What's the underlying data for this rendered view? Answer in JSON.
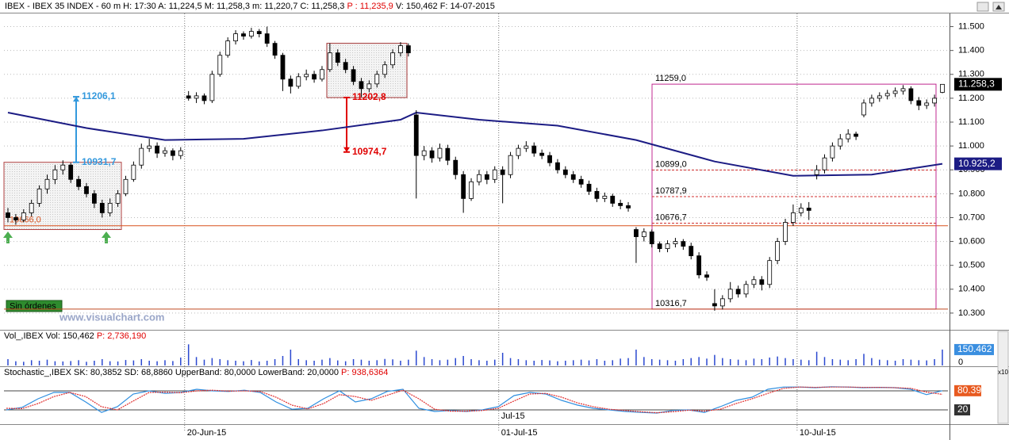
{
  "chart_data": {
    "type": "candlestick",
    "header": {
      "main": "IBEX - IBEX 35 INDEX -  60 m H: 17:30 A: 11,224,5 M: 11,258,3 m: 11,220,7 C: 11,258,3 ",
      "last": "P : 11,235,9",
      "tail": " V: 150,462 F: 14-07-2015"
    },
    "ylim": [
      10230,
      11555
    ],
    "yticks": [
      {
        "value": 11500,
        "label": "11.500"
      },
      {
        "value": 11400,
        "label": "11.400"
      },
      {
        "value": 11300,
        "label": "11.300"
      },
      {
        "value": 11200,
        "label": "11.200"
      },
      {
        "value": 11100,
        "label": "11.100"
      },
      {
        "value": 11000,
        "label": "11.000"
      },
      {
        "value": 10900,
        "label": "10.900"
      },
      {
        "value": 10800,
        "label": "10.800"
      },
      {
        "value": 10700,
        "label": "10.700"
      },
      {
        "value": 10600,
        "label": "10.600"
      },
      {
        "value": 10500,
        "label": "10.500"
      },
      {
        "value": 10400,
        "label": "10.400"
      },
      {
        "value": 10300,
        "label": "10.300"
      }
    ],
    "grid": true,
    "categories": [
      null,
      null,
      null,
      null,
      null,
      null,
      null,
      null,
      null,
      null,
      null,
      null,
      null,
      null,
      null,
      null,
      null,
      null,
      null,
      null,
      null,
      null,
      null,
      "20-Jun-15",
      null,
      null,
      null,
      null,
      null,
      null,
      null,
      null,
      null,
      null,
      null,
      null,
      null,
      null,
      null,
      null,
      null,
      null,
      null,
      null,
      null,
      null,
      null,
      null,
      null,
      null,
      null,
      null,
      null,
      null,
      null,
      null,
      null,
      null,
      null,
      null,
      null,
      null,
      null,
      "01-Jul-15",
      null,
      null,
      null,
      null,
      null,
      null,
      null,
      null,
      null,
      null,
      null,
      null,
      null,
      null,
      null,
      null,
      null,
      null,
      null,
      null,
      null,
      null,
      null,
      null,
      null,
      null,
      null,
      null,
      null,
      null,
      null,
      null,
      null,
      null,
      null,
      null,
      null,
      "10-Jul-15",
      null,
      null,
      null,
      null,
      null,
      null,
      null,
      null,
      null,
      null,
      null,
      null,
      null,
      null,
      null,
      null
    ],
    "month_label": "Jul-15",
    "candles": [
      [
        10720,
        10740,
        10680,
        10700
      ],
      [
        10700,
        10715,
        10670,
        10690
      ],
      [
        10690,
        10735,
        10680,
        10720
      ],
      [
        10720,
        10775,
        10705,
        10760
      ],
      [
        10760,
        10835,
        10745,
        10820
      ],
      [
        10820,
        10880,
        10800,
        10860
      ],
      [
        10860,
        10920,
        10840,
        10900
      ],
      [
        10900,
        10940,
        10880,
        10920
      ],
      [
        10920,
        10930,
        10845,
        10860
      ],
      [
        10860,
        10875,
        10815,
        10830
      ],
      [
        10830,
        10845,
        10785,
        10800
      ],
      [
        10800,
        10815,
        10740,
        10760
      ],
      [
        10760,
        10775,
        10700,
        10720
      ],
      [
        10720,
        10780,
        10705,
        10760
      ],
      [
        10760,
        10815,
        10745,
        10800
      ],
      [
        10800,
        10875,
        10790,
        10860
      ],
      [
        10860,
        10935,
        10850,
        10920
      ],
      [
        10920,
        11010,
        10905,
        10990
      ],
      [
        10990,
        11030,
        10975,
        11000
      ],
      [
        11000,
        11015,
        10950,
        10970
      ],
      [
        10970,
        10995,
        10955,
        10980
      ],
      [
        10980,
        10990,
        10940,
        10960
      ],
      [
        10960,
        10995,
        10945,
        10980
      ],
      [
        11210,
        11230,
        11190,
        11200
      ],
      [
        11200,
        11225,
        11180,
        11210
      ],
      [
        11210,
        11220,
        11175,
        11190
      ],
      [
        11190,
        11315,
        11180,
        11300
      ],
      [
        11300,
        11395,
        11290,
        11380
      ],
      [
        11380,
        11455,
        11370,
        11440
      ],
      [
        11440,
        11485,
        11425,
        11470
      ],
      [
        11470,
        11480,
        11445,
        11460
      ],
      [
        11460,
        11495,
        11450,
        11480
      ],
      [
        11480,
        11490,
        11455,
        11470
      ],
      [
        11470,
        11500,
        11415,
        11430
      ],
      [
        11430,
        11440,
        11365,
        11380
      ],
      [
        11380,
        11390,
        11230,
        11280
      ],
      [
        11280,
        11295,
        11220,
        11250
      ],
      [
        11250,
        11305,
        11240,
        11290
      ],
      [
        11290,
        11320,
        11275,
        11300
      ],
      [
        11300,
        11315,
        11265,
        11280
      ],
      [
        11280,
        11335,
        11270,
        11320
      ],
      [
        11320,
        11430,
        11310,
        11390
      ],
      [
        11390,
        11405,
        11335,
        11350
      ],
      [
        11350,
        11365,
        11305,
        11320
      ],
      [
        11320,
        11335,
        11255,
        11270
      ],
      [
        11270,
        11285,
        11205,
        11240
      ],
      [
        11240,
        11275,
        11225,
        11260
      ],
      [
        11260,
        11315,
        11245,
        11300
      ],
      [
        11300,
        11355,
        11285,
        11340
      ],
      [
        11340,
        11405,
        11325,
        11390
      ],
      [
        11390,
        11435,
        11375,
        11420
      ],
      [
        11420,
        11430,
        11375,
        11390
      ],
      [
        11130,
        11150,
        10780,
        10960
      ],
      [
        10960,
        11000,
        10940,
        10980
      ],
      [
        10980,
        10995,
        10930,
        10950
      ],
      [
        10950,
        11010,
        10935,
        10990
      ],
      [
        10990,
        11005,
        10920,
        10940
      ],
      [
        10940,
        10955,
        10860,
        10880
      ],
      [
        10880,
        10895,
        10720,
        10780
      ],
      [
        10780,
        10865,
        10770,
        10850
      ],
      [
        10850,
        10900,
        10835,
        10880
      ],
      [
        10880,
        10895,
        10840,
        10860
      ],
      [
        10860,
        10915,
        10845,
        10900
      ],
      [
        10900,
        10915,
        10760,
        10880
      ],
      [
        10880,
        10975,
        10865,
        10960
      ],
      [
        10960,
        11005,
        10945,
        10990
      ],
      [
        10990,
        11020,
        10975,
        11000
      ],
      [
        11000,
        11015,
        10955,
        10970
      ],
      [
        10970,
        10985,
        10945,
        10960
      ],
      [
        10960,
        10975,
        10915,
        10930
      ],
      [
        10930,
        10945,
        10885,
        10900
      ],
      [
        10900,
        10915,
        10865,
        10880
      ],
      [
        10880,
        10895,
        10845,
        10860
      ],
      [
        10860,
        10875,
        10825,
        10840
      ],
      [
        10840,
        10855,
        10795,
        10810
      ],
      [
        10810,
        10825,
        10765,
        10780
      ],
      [
        10780,
        10805,
        10765,
        10790
      ],
      [
        10790,
        10800,
        10745,
        10760
      ],
      [
        10760,
        10775,
        10735,
        10750
      ],
      [
        10750,
        10765,
        10725,
        10740
      ],
      [
        10650,
        10660,
        10510,
        10620
      ],
      [
        10620,
        10655,
        10600,
        10640
      ],
      [
        10640,
        10650,
        10575,
        10590
      ],
      [
        10590,
        10600,
        10555,
        10570
      ],
      [
        10570,
        10605,
        10555,
        10590
      ],
      [
        10590,
        10615,
        10575,
        10600
      ],
      [
        10600,
        10610,
        10565,
        10580
      ],
      [
        10580,
        10595,
        10525,
        10540
      ],
      [
        10540,
        10555,
        10445,
        10460
      ],
      [
        10460,
        10475,
        10435,
        10450
      ],
      [
        10340,
        10400,
        10310,
        10330
      ],
      [
        10330,
        10375,
        10315,
        10360
      ],
      [
        10360,
        10430,
        10345,
        10400
      ],
      [
        10400,
        10415,
        10365,
        10380
      ],
      [
        10380,
        10435,
        10365,
        10420
      ],
      [
        10420,
        10455,
        10405,
        10440
      ],
      [
        10440,
        10455,
        10395,
        10420
      ],
      [
        10420,
        10535,
        10405,
        10520
      ],
      [
        10520,
        10615,
        10505,
        10600
      ],
      [
        10600,
        10695,
        10585,
        10680
      ],
      [
        10680,
        10755,
        10665,
        10720
      ],
      [
        10720,
        10760,
        10705,
        10740
      ],
      [
        10740,
        10765,
        10690,
        10730
      ],
      [
        10880,
        10920,
        10860,
        10900
      ],
      [
        10900,
        10965,
        10885,
        10950
      ],
      [
        10950,
        11015,
        10935,
        11000
      ],
      [
        11000,
        11050,
        10985,
        11030
      ],
      [
        11030,
        11070,
        11015,
        11050
      ],
      [
        11050,
        11060,
        11025,
        11040
      ],
      [
        11130,
        11195,
        11120,
        11180
      ],
      [
        11180,
        11215,
        11165,
        11200
      ],
      [
        11200,
        11225,
        11185,
        11210
      ],
      [
        11210,
        11235,
        11195,
        11220
      ],
      [
        11220,
        11245,
        11205,
        11230
      ],
      [
        11230,
        11255,
        11215,
        11240
      ],
      [
        11240,
        11250,
        11175,
        11190
      ],
      [
        11190,
        11205,
        11150,
        11170
      ],
      [
        11170,
        11195,
        11155,
        11180
      ],
      [
        11180,
        11215,
        11165,
        11200
      ],
      [
        11224.5,
        11258.3,
        11220.7,
        11258.3
      ]
    ],
    "last_label": {
      "value": 11258.3,
      "label": "11.258,3"
    },
    "ma": {
      "color": "#1c1c84",
      "x": [
        0,
        10,
        20,
        30,
        40,
        50,
        52,
        60,
        70,
        80,
        90,
        100,
        110,
        119
      ],
      "values": [
        11140,
        11075,
        11025,
        11030,
        11065,
        11110,
        11140,
        11110,
        11085,
        11025,
        10935,
        10875,
        10880,
        10925.2
      ],
      "label": {
        "value": 10925.2,
        "label": "10.925,2"
      }
    },
    "box1": {
      "top": 10931.7,
      "bottom": 10650
    },
    "box2": {
      "top": 11430,
      "bottom": 11202.8
    },
    "arrow_blue": {
      "from": 10931.7,
      "to": 11206.1,
      "from_label": "10931,7",
      "to_label": "11206,1",
      "color": "#3399dd"
    },
    "arrow_red": {
      "from": 11202.8,
      "to": 10974.7,
      "from_label": "11202,8",
      "to_label": "10974,7",
      "color": "#e00000"
    },
    "support": {
      "value": 10666,
      "label": "10666,0",
      "color": "#d8501c"
    },
    "range_box": {
      "color": "#c02890",
      "top": 11259,
      "top_label": "11259,0",
      "bottom": 10316.7,
      "bottom_label": "10316,7",
      "levels": [
        {
          "value": 10899,
          "label": "10899,0"
        },
        {
          "value": 10787.9,
          "label": "10787,9"
        },
        {
          "value": 10676.7,
          "label": "10676,7"
        }
      ]
    },
    "orders_status": "Sin órdenes",
    "watermark": "www.visualchart.com",
    "volume": {
      "title": "Vol_,IBEX Vol: 150,462 ",
      "p": "P: 2,736,190",
      "color": "#2a48d0",
      "ylim": [
        0,
        300000
      ],
      "zero_label": "0",
      "last_label": "150.462",
      "values": [
        60000,
        40000,
        35000,
        50000,
        45000,
        55000,
        40000,
        38000,
        42000,
        50000,
        35000,
        45000,
        60000,
        40000,
        38000,
        52000,
        48000,
        60000,
        45000,
        40000,
        50000,
        42000,
        75000,
        200000,
        80000,
        55000,
        70000,
        60000,
        50000,
        45000,
        40000,
        52000,
        38000,
        45000,
        60000,
        90000,
        150000,
        60000,
        50000,
        45000,
        55000,
        70000,
        48000,
        40000,
        60000,
        55000,
        45000,
        50000,
        62000,
        58000,
        45000,
        55000,
        140000,
        80000,
        60000,
        50000,
        55000,
        70000,
        90000,
        60000,
        50000,
        45000,
        55000,
        120000,
        70000,
        60000,
        50000,
        45000,
        52000,
        48000,
        40000,
        45000,
        50000,
        55000,
        48000,
        60000,
        45000,
        50000,
        65000,
        70000,
        150000,
        80000,
        60000,
        55000,
        50000,
        45000,
        60000,
        70000,
        80000,
        65000,
        100000,
        70000,
        60000,
        55000,
        50000,
        65000,
        60000,
        75000,
        85000,
        70000,
        60000,
        55000,
        50000,
        130000,
        80000,
        60000,
        55000,
        50000,
        60000,
        110000,
        70000,
        55000,
        50000,
        45000,
        60000,
        55000,
        50000,
        48000,
        60000,
        150462
      ]
    },
    "stochastic": {
      "title": "Stochastic_,IBEX SK: 80,3852 SD: 68,8860 UpperBand: 80,0000 LowerBand: 20,0000 ",
      "p": "P: 938,6364",
      "ylim": [
        0,
        100
      ],
      "upper": 80,
      "lower": 20,
      "sk_label": "80.39",
      "lower_label": "20",
      "scale_label": "x10",
      "series": [
        {
          "name": "SK",
          "color": "#2f8fe0",
          "values": [
            20,
            28,
            55,
            75,
            75,
            45,
            12,
            30,
            70,
            80,
            72,
            75,
            85,
            80,
            78,
            82,
            75,
            45,
            22,
            25,
            55,
            80,
            45,
            55,
            78,
            85,
            25,
            15,
            18,
            15,
            20,
            30,
            65,
            75,
            70,
            50,
            35,
            25,
            20,
            15,
            12,
            10,
            18,
            20,
            12,
            30,
            50,
            60,
            85,
            92,
            92,
            90,
            93,
            92,
            90,
            91,
            90,
            85,
            68,
            80.3852
          ]
        },
        {
          "name": "SD",
          "color": "#e03030",
          "values": [
            25,
            24,
            40,
            62,
            75,
            62,
            30,
            20,
            48,
            75,
            76,
            74,
            80,
            82,
            79,
            80,
            78,
            60,
            35,
            23,
            40,
            68,
            62,
            50,
            66,
            82,
            55,
            22,
            16,
            16,
            18,
            25,
            48,
            70,
            72,
            60,
            42,
            30,
            22,
            18,
            14,
            11,
            14,
            19,
            16,
            22,
            40,
            55,
            72,
            88,
            92,
            91,
            92,
            92,
            91,
            91,
            90,
            88,
            76,
            68.886
          ]
        }
      ]
    }
  }
}
